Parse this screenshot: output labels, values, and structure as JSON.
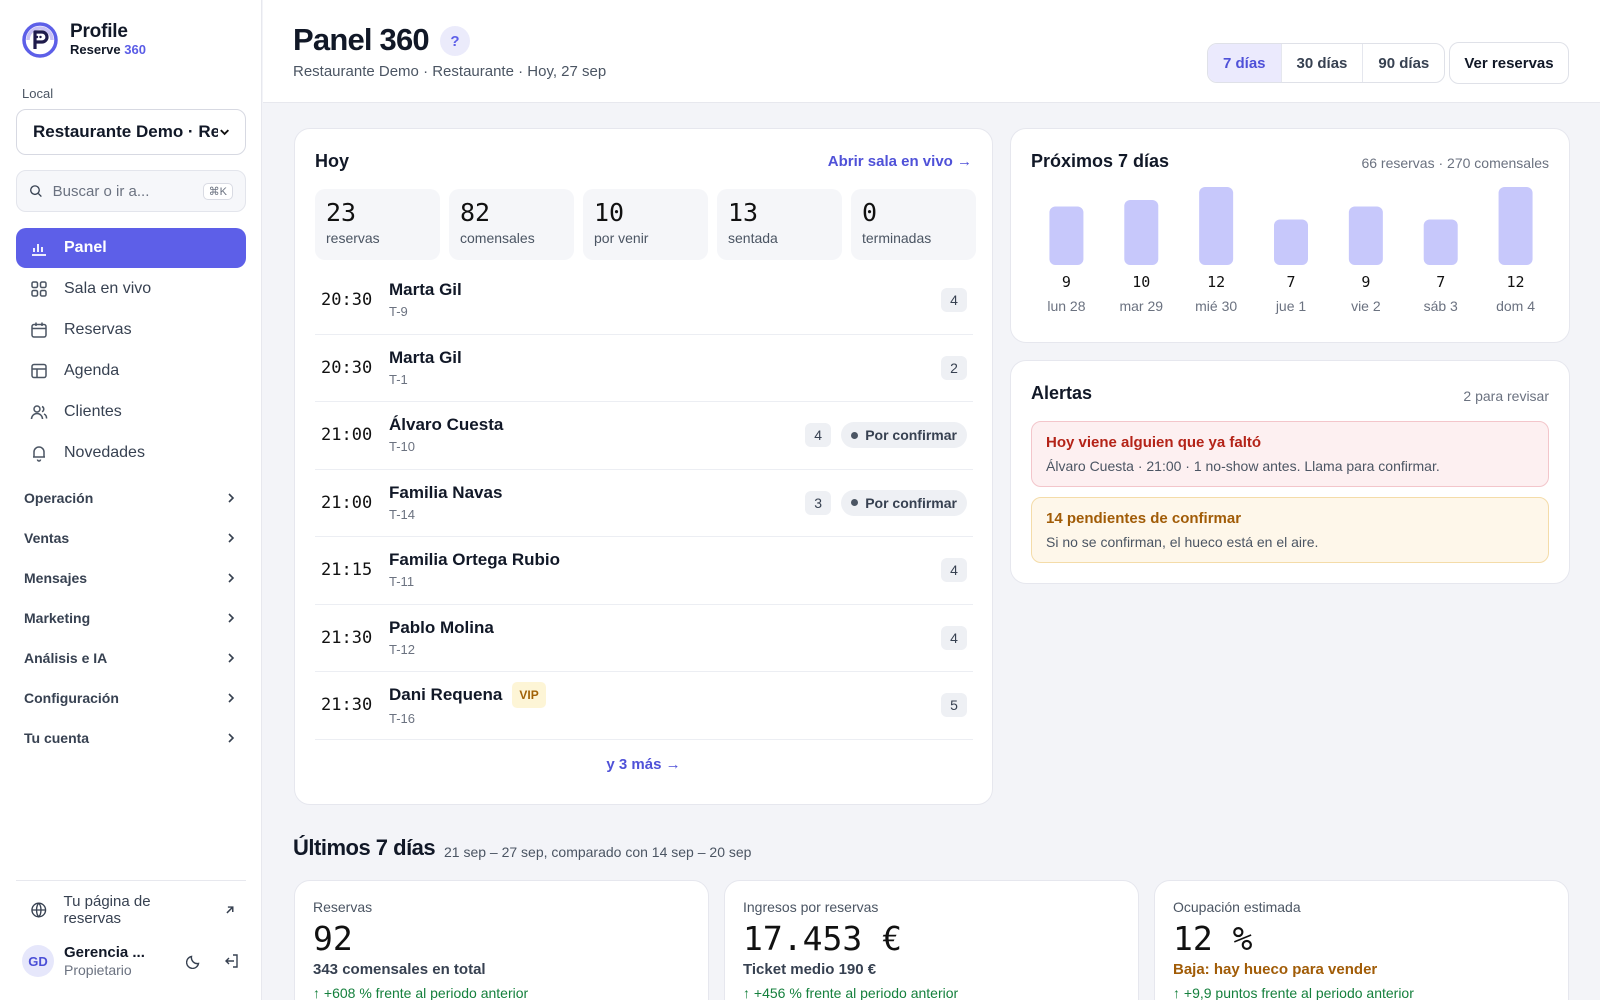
{
  "brand": {
    "name": "Profile",
    "sub_a": "Reserve",
    "sub_b": "360"
  },
  "sidebar": {
    "local_label": "Local",
    "local_value": "Restaurante Demo · Res",
    "search_placeholder": "Buscar o ir a...",
    "search_shortcut": "⌘K",
    "nav": [
      {
        "label": "Panel",
        "icon": "bar-chart-icon",
        "active": true
      },
      {
        "label": "Sala en vivo",
        "icon": "grid-icon"
      },
      {
        "label": "Reservas",
        "icon": "calendar-icon"
      },
      {
        "label": "Agenda",
        "icon": "table-icon"
      },
      {
        "label": "Clientes",
        "icon": "users-icon"
      },
      {
        "label": "Novedades",
        "icon": "bell-icon"
      }
    ],
    "groups": [
      "Operación",
      "Ventas",
      "Mensajes",
      "Marketing",
      "Análisis e IA",
      "Configuración",
      "Tu cuenta"
    ],
    "public_page": "Tu página de reservas",
    "user": {
      "initials": "GD",
      "name": "Gerencia ...",
      "role": "Propietario"
    }
  },
  "header": {
    "title": "Panel 360",
    "help": "?",
    "crumb": "Restaurante Demo · Restaurante · Hoy, 27 sep",
    "ranges": [
      "7 días",
      "30 días",
      "90 días"
    ],
    "active_range": "7 días",
    "cta": "Ver reservas"
  },
  "today": {
    "title": "Hoy",
    "open_link": "Abrir sala en vivo →",
    "stats": [
      {
        "num": "23",
        "label": "reservas"
      },
      {
        "num": "82",
        "label": "comensales"
      },
      {
        "num": "10",
        "label": "por venir"
      },
      {
        "num": "13",
        "label": "sentada"
      },
      {
        "num": "0",
        "label": "terminadas"
      }
    ],
    "reservations": [
      {
        "time": "20:30",
        "name": "Marta Gil",
        "table": "T-9",
        "pax": "4"
      },
      {
        "time": "20:30",
        "name": "Marta Gil",
        "table": "T-1",
        "pax": "2"
      },
      {
        "time": "21:00",
        "name": "Álvaro Cuesta",
        "table": "T-10",
        "pax": "4",
        "status": "Por confirmar"
      },
      {
        "time": "21:00",
        "name": "Familia Navas",
        "table": "T-14",
        "pax": "3",
        "status": "Por confirmar"
      },
      {
        "time": "21:15",
        "name": "Familia Ortega Rubio",
        "table": "T-11",
        "pax": "4"
      },
      {
        "time": "21:30",
        "name": "Pablo Molina",
        "table": "T-12",
        "pax": "4"
      },
      {
        "time": "21:30",
        "name": "Dani Requena",
        "table": "T-16",
        "pax": "5",
        "badge": "VIP"
      }
    ],
    "more_link": "y 3 más →"
  },
  "next7": {
    "title": "Próximos 7 días",
    "meta": "66 reservas · 270 comensales",
    "bar_color": "#c7c8fb"
  },
  "chart_data": {
    "type": "bar",
    "categories": [
      "lun 28",
      "mar 29",
      "mié 30",
      "jue 1",
      "vie 2",
      "sáb 3",
      "dom 4"
    ],
    "values": [
      9,
      10,
      12,
      7,
      9,
      7,
      12
    ]
  },
  "alerts": {
    "title": "Alertas",
    "meta": "2 para revisar",
    "items": [
      {
        "title": "Hoy viene alguien que ya faltó",
        "desc": "Álvaro Cuesta · 21:00 · 1 no-show antes. Llama para confirmar.",
        "level": "red"
      },
      {
        "title": "14 pendientes de confirmar",
        "desc": "Si no se confirman, el hueco está en el aire.",
        "level": "amber"
      }
    ]
  },
  "last7": {
    "title": "Últimos 7 días",
    "range": "21 sep – 27 sep, comparado con 14 sep – 20 sep",
    "kpis": [
      {
        "label": "Reservas",
        "value": "92",
        "sub": "343 comensales en total",
        "delta": "↑ +608 % frente al periodo anterior"
      },
      {
        "label": "Ingresos por reservas",
        "value": "17.453 €",
        "sub": "Ticket medio 190 €",
        "delta": "↑ +456 % frente al periodo anterior"
      },
      {
        "label": "Ocupación estimada",
        "value": "12 %",
        "sub": "Baja: hay hueco para vender",
        "delta": "↑ +9,9 puntos frente al periodo anterior",
        "warn": true
      }
    ]
  },
  "colors": {
    "accent": "#5d5fe8",
    "accent_soft": "#ebeafd",
    "positive": "#15803d",
    "warning": "#a15c07",
    "danger": "#b42318"
  }
}
